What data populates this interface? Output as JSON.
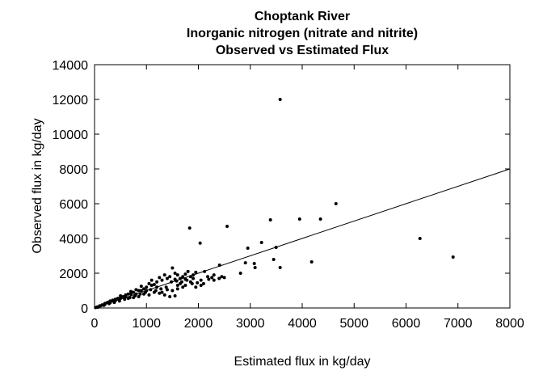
{
  "chart_data": {
    "type": "scatter",
    "title": [
      "Choptank River",
      "Inorganic nitrogen (nitrate and nitrite)",
      "Observed vs Estimated Flux"
    ],
    "xlabel": "Estimated flux in kg/day",
    "ylabel": "Observed flux in kg/day",
    "xlim": [
      0,
      8000
    ],
    "ylim": [
      0,
      14000
    ],
    "xticks": [
      0,
      1000,
      2000,
      3000,
      4000,
      5000,
      6000,
      7000,
      8000
    ],
    "yticks": [
      0,
      2000,
      4000,
      6000,
      8000,
      10000,
      12000,
      14000
    ],
    "grid": false,
    "reference_line": {
      "from": [
        0,
        0
      ],
      "to": [
        8000,
        8000
      ]
    },
    "points": [
      [
        3575,
        12000
      ],
      [
        4650,
        6000
      ],
      [
        3950,
        5116
      ],
      [
        4352,
        5116
      ],
      [
        3388,
        5070
      ],
      [
        2553,
        4700
      ],
      [
        6268,
        4000
      ],
      [
        6906,
        2930
      ],
      [
        3217,
        3767
      ],
      [
        2952,
        3442
      ],
      [
        3497,
        3488
      ],
      [
        2906,
        2600
      ],
      [
        3077,
        2558
      ],
      [
        3092,
        2325
      ],
      [
        3450,
        2790
      ],
      [
        3575,
        2325
      ],
      [
        4182,
        2650
      ],
      [
        2812,
        2000
      ],
      [
        1832,
        4600
      ],
      [
        2034,
        3735
      ],
      [
        2408,
        2465
      ],
      [
        2120,
        2100
      ],
      [
        2180,
        1800
      ],
      [
        2260,
        1750
      ],
      [
        2300,
        1900
      ],
      [
        2400,
        1700
      ],
      [
        2450,
        1800
      ],
      [
        2500,
        1750
      ],
      [
        2200,
        1650
      ],
      [
        2050,
        1600
      ],
      [
        1950,
        2050
      ],
      [
        1900,
        1900
      ],
      [
        1850,
        1800
      ],
      [
        1800,
        2100
      ],
      [
        1750,
        1950
      ],
      [
        1700,
        1800
      ],
      [
        1650,
        1700
      ],
      [
        1600,
        1900
      ],
      [
        1550,
        2000
      ],
      [
        1500,
        2300
      ],
      [
        1450,
        1800
      ],
      [
        1400,
        1700
      ],
      [
        1350,
        1900
      ],
      [
        1300,
        1600
      ],
      [
        1250,
        1750
      ],
      [
        1200,
        1500
      ],
      [
        1150,
        1350
      ],
      [
        1100,
        1600
      ],
      [
        1050,
        1400
      ],
      [
        1000,
        1200
      ],
      [
        950,
        1100
      ],
      [
        900,
        1250
      ],
      [
        850,
        1000
      ],
      [
        800,
        1050
      ],
      [
        750,
        900
      ],
      [
        700,
        950
      ],
      [
        650,
        800
      ],
      [
        600,
        750
      ],
      [
        550,
        650
      ],
      [
        500,
        700
      ],
      [
        450,
        550
      ],
      [
        400,
        500
      ],
      [
        350,
        450
      ],
      [
        300,
        400
      ],
      [
        250,
        320
      ],
      [
        200,
        260
      ],
      [
        150,
        180
      ],
      [
        100,
        120
      ],
      [
        50,
        60
      ],
      [
        20,
        25
      ],
      [
        1480,
        1500
      ],
      [
        1580,
        1550
      ],
      [
        1680,
        1500
      ],
      [
        1780,
        1600
      ],
      [
        1880,
        1400
      ],
      [
        1980,
        1450
      ],
      [
        1380,
        1200
      ],
      [
        1280,
        1100
      ],
      [
        1180,
        1000
      ],
      [
        1080,
        1050
      ],
      [
        980,
        900
      ],
      [
        880,
        800
      ],
      [
        780,
        700
      ],
      [
        680,
        600
      ],
      [
        580,
        500
      ],
      [
        480,
        400
      ],
      [
        380,
        320
      ],
      [
        280,
        250
      ],
      [
        180,
        150
      ],
      [
        80,
        70
      ],
      [
        1500,
        1000
      ],
      [
        1600,
        1100
      ],
      [
        1700,
        1200
      ],
      [
        1750,
        1300
      ],
      [
        1850,
        1500
      ],
      [
        1300,
        900
      ],
      [
        1400,
        1050
      ],
      [
        1200,
        1200
      ],
      [
        1100,
        1300
      ],
      [
        1000,
        1000
      ],
      [
        900,
        1000
      ],
      [
        800,
        800
      ],
      [
        700,
        800
      ],
      [
        600,
        650
      ],
      [
        500,
        550
      ],
      [
        400,
        420
      ],
      [
        300,
        300
      ],
      [
        200,
        210
      ],
      [
        120,
        130
      ],
      [
        60,
        40
      ],
      [
        1550,
        700
      ],
      [
        1450,
        650
      ],
      [
        1350,
        750
      ],
      [
        1250,
        850
      ],
      [
        1150,
        900
      ],
      [
        1050,
        750
      ],
      [
        950,
        800
      ],
      [
        850,
        650
      ],
      [
        750,
        600
      ],
      [
        650,
        550
      ],
      [
        2050,
        1300
      ],
      [
        1950,
        1200
      ],
      [
        1650,
        1400
      ],
      [
        1750,
        1650
      ],
      [
        1900,
        1700
      ],
      [
        2100,
        1400
      ],
      [
        2300,
        1600
      ],
      [
        1550,
        1650
      ],
      [
        1600,
        1300
      ]
    ]
  }
}
